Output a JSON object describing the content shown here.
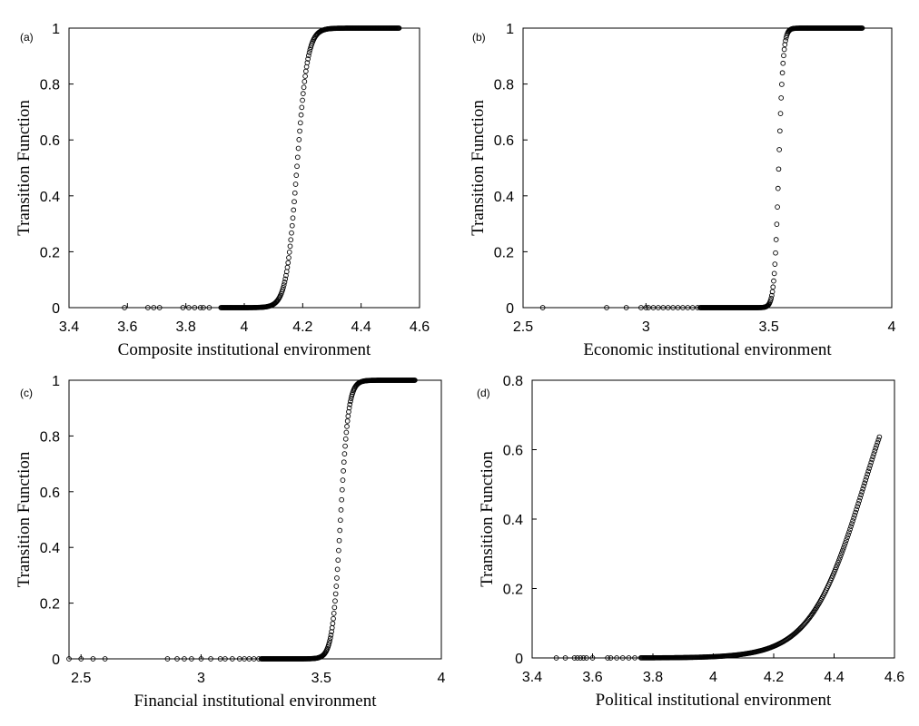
{
  "chart_data": [
    {
      "type": "scatter",
      "panel_label": "(a)",
      "xlabel": "Composite institutional environment",
      "ylabel": "Transition Function",
      "xlim": [
        3.4,
        4.6
      ],
      "ylim": [
        0,
        1
      ],
      "xticks": [
        "3.4",
        "3.6",
        "3.8",
        "4",
        "4.2",
        "4.4",
        "4.6"
      ],
      "yticks": [
        "0",
        "0.2",
        "0.4",
        "0.6",
        "0.8",
        "1"
      ],
      "series": [
        {
          "curve": "logistic",
          "threshold": 4.18,
          "slope": 55,
          "x_range": [
            3.92,
            4.53
          ],
          "sparse_x": [
            3.59,
            3.67,
            3.69,
            3.71,
            3.79,
            3.81,
            3.83,
            3.85,
            3.86,
            3.88
          ]
        }
      ]
    },
    {
      "type": "scatter",
      "panel_label": "(b)",
      "xlabel": "Economic institutional environment",
      "ylabel": "Transition Function",
      "xlim": [
        2.5,
        4
      ],
      "ylim": [
        0,
        1
      ],
      "xticks": [
        "2.5",
        "3",
        "3.5",
        "4"
      ],
      "yticks": [
        "0",
        "0.2",
        "0.4",
        "0.6",
        "0.8",
        "1"
      ],
      "series": [
        {
          "curve": "logistic",
          "threshold": 3.54,
          "slope": 110,
          "x_range": [
            3.22,
            3.88
          ],
          "sparse_x": [
            2.58,
            2.84,
            2.92,
            2.98,
            3.0,
            3.01,
            3.03,
            3.05,
            3.07,
            3.09,
            3.11,
            3.13,
            3.15,
            3.17,
            3.19,
            3.21
          ]
        }
      ]
    },
    {
      "type": "scatter",
      "panel_label": "(c)",
      "xlabel": "Financial institutional environment",
      "ylabel": "Transition Function",
      "xlim": [
        2.45,
        4
      ],
      "ylim": [
        0,
        1
      ],
      "xticks": [
        "2.5",
        "3",
        "3.5",
        "4"
      ],
      "yticks": [
        "0",
        "0.2",
        "0.4",
        "0.6",
        "0.8",
        "1"
      ],
      "series": [
        {
          "curve": "logistic",
          "threshold": 3.58,
          "slope": 60,
          "x_range": [
            3.25,
            3.89
          ],
          "sparse_x": [
            2.45,
            2.5,
            2.55,
            2.6,
            2.86,
            2.9,
            2.93,
            2.96,
            3.0,
            3.04,
            3.08,
            3.1,
            3.13,
            3.16,
            3.18,
            3.2,
            3.22,
            3.24
          ]
        }
      ]
    },
    {
      "type": "scatter",
      "panel_label": "(d)",
      "xlabel": "Political institutional environment",
      "ylabel": "Transition Function",
      "xlim": [
        3.4,
        4.6
      ],
      "ylim": [
        0,
        0.8
      ],
      "xticks": [
        "3.4",
        "3.6",
        "3.8",
        "4",
        "4.2",
        "4.4",
        "4.6"
      ],
      "yticks": [
        "0",
        "0.2",
        "0.4",
        "0.6",
        "0.8"
      ],
      "series": [
        {
          "curve": "logistic",
          "threshold": 4.5,
          "slope": 11.2,
          "x_range": [
            3.76,
            4.55
          ],
          "sparse_x": [
            3.48,
            3.51,
            3.54,
            3.55,
            3.56,
            3.57,
            3.58,
            3.6,
            3.65,
            3.66,
            3.68,
            3.7,
            3.72,
            3.74
          ]
        }
      ]
    }
  ]
}
